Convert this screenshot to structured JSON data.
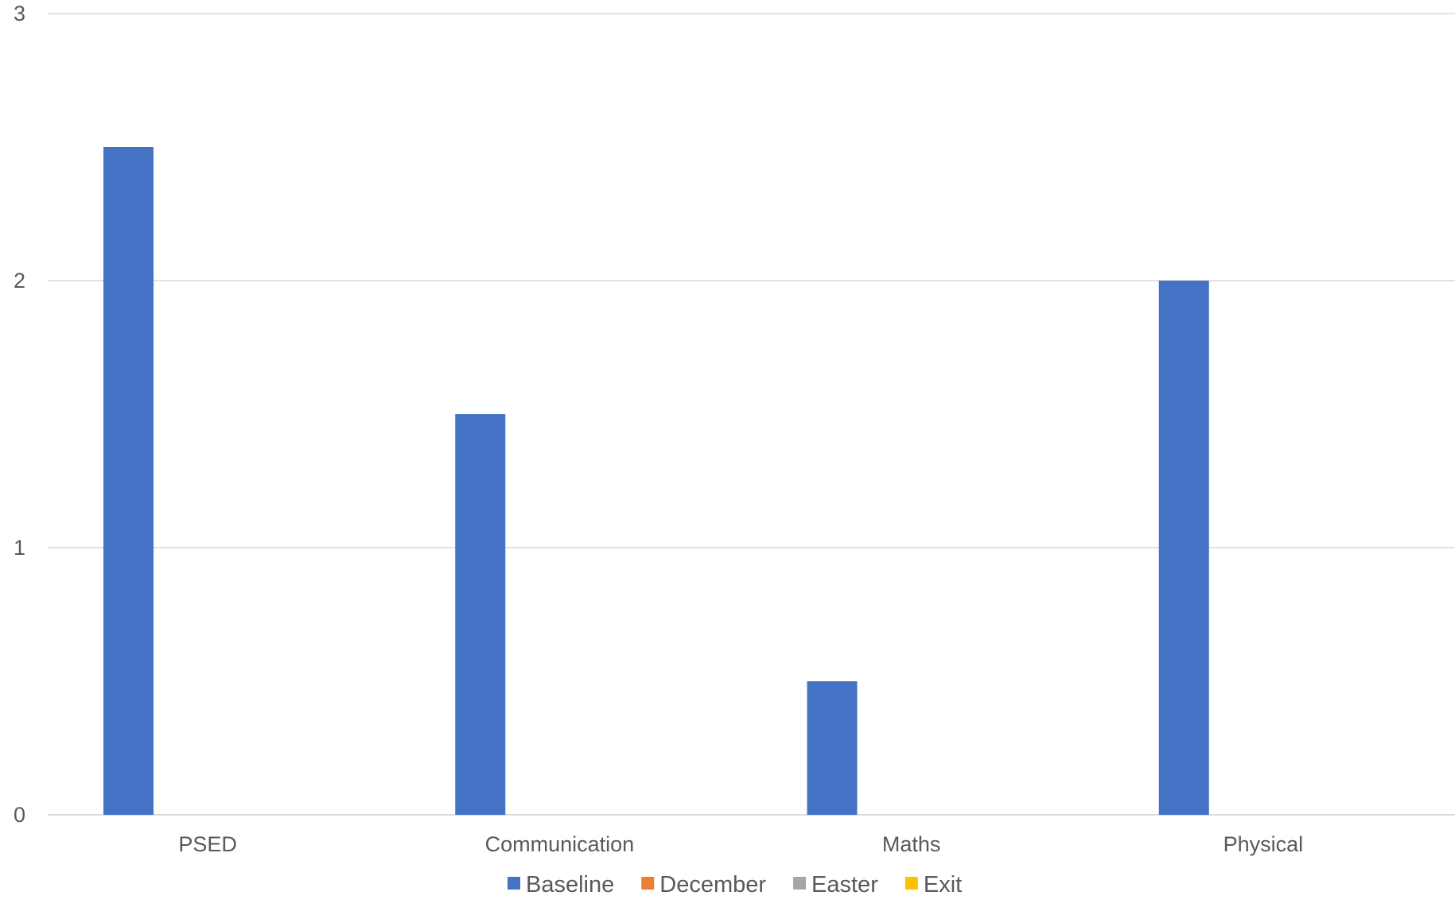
{
  "chart_data": {
    "type": "bar",
    "title": "",
    "xlabel": "",
    "ylabel": "",
    "categories": [
      "PSED",
      "Communication",
      "Maths",
      "Physical"
    ],
    "series": [
      {
        "name": "Baseline",
        "values": [
          2.5,
          1.5,
          0.5,
          2
        ],
        "color": "#4472C4"
      },
      {
        "name": "December",
        "values": [
          0,
          0,
          0,
          0
        ],
        "color": "#ED7D31"
      },
      {
        "name": "Easter",
        "values": [
          0,
          0,
          0,
          0
        ],
        "color": "#A5A5A5"
      },
      {
        "name": "Exit",
        "values": [
          0,
          0,
          0,
          0
        ],
        "color": "#FFC000"
      }
    ],
    "ylim": [
      0,
      3
    ],
    "yticks": [
      "0",
      "1",
      "2",
      "3"
    ],
    "grid": true,
    "legend_position": "bottom"
  }
}
